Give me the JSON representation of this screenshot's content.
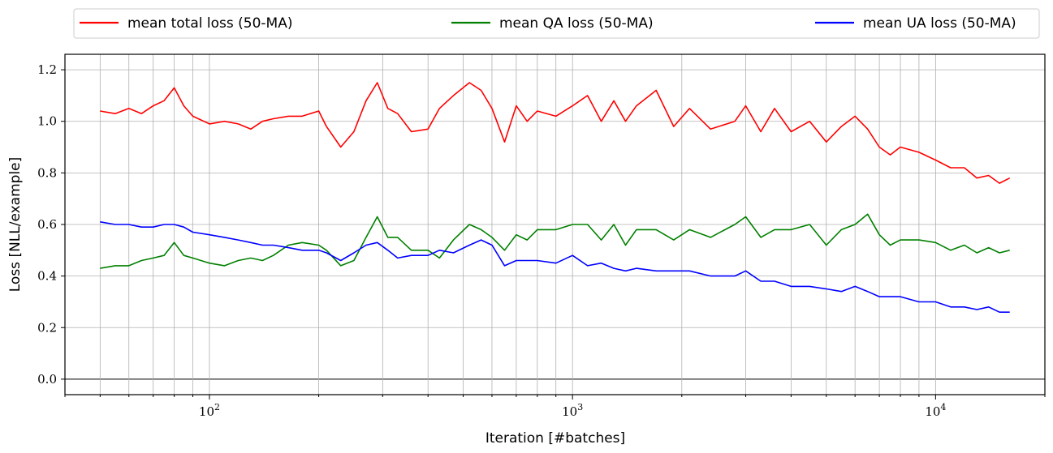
{
  "chart_data": {
    "type": "line",
    "xlabel": "Iteration [#batches]",
    "ylabel": "Loss [NLL/example]",
    "x_scale": "log",
    "xlim": [
      40,
      20000
    ],
    "ylim": [
      -0.06,
      1.26
    ],
    "grid": true,
    "legend_position": "top",
    "x_tick_labels": [
      {
        "value": 100,
        "base": "10",
        "exp": "2"
      },
      {
        "value": 1000,
        "base": "10",
        "exp": "3"
      },
      {
        "value": 10000,
        "base": "10",
        "exp": "4"
      }
    ],
    "y_ticks": [
      0.0,
      0.2,
      0.4,
      0.6,
      0.8,
      1.0,
      1.2
    ],
    "y_tick_labels": [
      "0.0",
      "0.2",
      "0.4",
      "0.6",
      "0.8",
      "1.0",
      "1.2"
    ],
    "zero_line": true,
    "series": [
      {
        "name": "mean total loss (50-MA)",
        "color": "#ff0000",
        "points": [
          [
            50,
            1.04
          ],
          [
            55,
            1.03
          ],
          [
            60,
            1.05
          ],
          [
            65,
            1.03
          ],
          [
            70,
            1.06
          ],
          [
            75,
            1.08
          ],
          [
            80,
            1.13
          ],
          [
            85,
            1.06
          ],
          [
            90,
            1.02
          ],
          [
            100,
            0.99
          ],
          [
            110,
            1.0
          ],
          [
            120,
            0.99
          ],
          [
            130,
            0.97
          ],
          [
            140,
            1.0
          ],
          [
            150,
            1.01
          ],
          [
            165,
            1.02
          ],
          [
            180,
            1.02
          ],
          [
            200,
            1.04
          ],
          [
            210,
            0.98
          ],
          [
            230,
            0.9
          ],
          [
            250,
            0.96
          ],
          [
            270,
            1.08
          ],
          [
            290,
            1.15
          ],
          [
            310,
            1.05
          ],
          [
            330,
            1.03
          ],
          [
            360,
            0.96
          ],
          [
            400,
            0.97
          ],
          [
            430,
            1.05
          ],
          [
            470,
            1.1
          ],
          [
            520,
            1.15
          ],
          [
            560,
            1.12
          ],
          [
            600,
            1.05
          ],
          [
            650,
            0.92
          ],
          [
            700,
            1.06
          ],
          [
            750,
            1.0
          ],
          [
            800,
            1.04
          ],
          [
            900,
            1.02
          ],
          [
            1000,
            1.06
          ],
          [
            1100,
            1.1
          ],
          [
            1200,
            1.0
          ],
          [
            1300,
            1.08
          ],
          [
            1400,
            1.0
          ],
          [
            1500,
            1.06
          ],
          [
            1700,
            1.12
          ],
          [
            1900,
            0.98
          ],
          [
            2100,
            1.05
          ],
          [
            2400,
            0.97
          ],
          [
            2800,
            1.0
          ],
          [
            3000,
            1.06
          ],
          [
            3300,
            0.96
          ],
          [
            3600,
            1.05
          ],
          [
            4000,
            0.96
          ],
          [
            4500,
            1.0
          ],
          [
            5000,
            0.92
          ],
          [
            5500,
            0.98
          ],
          [
            6000,
            1.02
          ],
          [
            6500,
            0.97
          ],
          [
            7000,
            0.9
          ],
          [
            7500,
            0.87
          ],
          [
            8000,
            0.9
          ],
          [
            9000,
            0.88
          ],
          [
            10000,
            0.85
          ],
          [
            11000,
            0.82
          ],
          [
            12000,
            0.82
          ],
          [
            13000,
            0.78
          ],
          [
            14000,
            0.79
          ],
          [
            15000,
            0.76
          ],
          [
            16000,
            0.78
          ]
        ]
      },
      {
        "name": "mean QA loss (50-MA)",
        "color": "#008000",
        "points": [
          [
            50,
            0.43
          ],
          [
            55,
            0.44
          ],
          [
            60,
            0.44
          ],
          [
            65,
            0.46
          ],
          [
            70,
            0.47
          ],
          [
            75,
            0.48
          ],
          [
            80,
            0.53
          ],
          [
            85,
            0.48
          ],
          [
            90,
            0.47
          ],
          [
            100,
            0.45
          ],
          [
            110,
            0.44
          ],
          [
            120,
            0.46
          ],
          [
            130,
            0.47
          ],
          [
            140,
            0.46
          ],
          [
            150,
            0.48
          ],
          [
            165,
            0.52
          ],
          [
            180,
            0.53
          ],
          [
            200,
            0.52
          ],
          [
            210,
            0.5
          ],
          [
            230,
            0.44
          ],
          [
            250,
            0.46
          ],
          [
            270,
            0.55
          ],
          [
            290,
            0.63
          ],
          [
            310,
            0.55
          ],
          [
            330,
            0.55
          ],
          [
            360,
            0.5
          ],
          [
            400,
            0.5
          ],
          [
            430,
            0.47
          ],
          [
            470,
            0.54
          ],
          [
            520,
            0.6
          ],
          [
            560,
            0.58
          ],
          [
            600,
            0.55
          ],
          [
            650,
            0.5
          ],
          [
            700,
            0.56
          ],
          [
            750,
            0.54
          ],
          [
            800,
            0.58
          ],
          [
            900,
            0.58
          ],
          [
            1000,
            0.6
          ],
          [
            1100,
            0.6
          ],
          [
            1200,
            0.54
          ],
          [
            1300,
            0.6
          ],
          [
            1400,
            0.52
          ],
          [
            1500,
            0.58
          ],
          [
            1700,
            0.58
          ],
          [
            1900,
            0.54
          ],
          [
            2100,
            0.58
          ],
          [
            2400,
            0.55
          ],
          [
            2800,
            0.6
          ],
          [
            3000,
            0.63
          ],
          [
            3300,
            0.55
          ],
          [
            3600,
            0.58
          ],
          [
            4000,
            0.58
          ],
          [
            4500,
            0.6
          ],
          [
            5000,
            0.52
          ],
          [
            5500,
            0.58
          ],
          [
            6000,
            0.6
          ],
          [
            6500,
            0.64
          ],
          [
            7000,
            0.56
          ],
          [
            7500,
            0.52
          ],
          [
            8000,
            0.54
          ],
          [
            9000,
            0.54
          ],
          [
            10000,
            0.53
          ],
          [
            11000,
            0.5
          ],
          [
            12000,
            0.52
          ],
          [
            13000,
            0.49
          ],
          [
            14000,
            0.51
          ],
          [
            15000,
            0.49
          ],
          [
            16000,
            0.5
          ]
        ]
      },
      {
        "name": "mean UA loss (50-MA)",
        "color": "#0000ff",
        "points": [
          [
            50,
            0.61
          ],
          [
            55,
            0.6
          ],
          [
            60,
            0.6
          ],
          [
            65,
            0.59
          ],
          [
            70,
            0.59
          ],
          [
            75,
            0.6
          ],
          [
            80,
            0.6
          ],
          [
            85,
            0.59
          ],
          [
            90,
            0.57
          ],
          [
            100,
            0.56
          ],
          [
            110,
            0.55
          ],
          [
            120,
            0.54
          ],
          [
            130,
            0.53
          ],
          [
            140,
            0.52
          ],
          [
            150,
            0.52
          ],
          [
            165,
            0.51
          ],
          [
            180,
            0.5
          ],
          [
            200,
            0.5
          ],
          [
            210,
            0.49
          ],
          [
            230,
            0.46
          ],
          [
            250,
            0.49
          ],
          [
            270,
            0.52
          ],
          [
            290,
            0.53
          ],
          [
            310,
            0.5
          ],
          [
            330,
            0.47
          ],
          [
            360,
            0.48
          ],
          [
            400,
            0.48
          ],
          [
            430,
            0.5
          ],
          [
            470,
            0.49
          ],
          [
            520,
            0.52
          ],
          [
            560,
            0.54
          ],
          [
            600,
            0.52
          ],
          [
            650,
            0.44
          ],
          [
            700,
            0.46
          ],
          [
            750,
            0.46
          ],
          [
            800,
            0.46
          ],
          [
            900,
            0.45
          ],
          [
            1000,
            0.48
          ],
          [
            1100,
            0.44
          ],
          [
            1200,
            0.45
          ],
          [
            1300,
            0.43
          ],
          [
            1400,
            0.42
          ],
          [
            1500,
            0.43
          ],
          [
            1700,
            0.42
          ],
          [
            1900,
            0.42
          ],
          [
            2100,
            0.42
          ],
          [
            2400,
            0.4
          ],
          [
            2800,
            0.4
          ],
          [
            3000,
            0.42
          ],
          [
            3300,
            0.38
          ],
          [
            3600,
            0.38
          ],
          [
            4000,
            0.36
          ],
          [
            4500,
            0.36
          ],
          [
            5000,
            0.35
          ],
          [
            5500,
            0.34
          ],
          [
            6000,
            0.36
          ],
          [
            6500,
            0.34
          ],
          [
            7000,
            0.32
          ],
          [
            7500,
            0.32
          ],
          [
            8000,
            0.32
          ],
          [
            9000,
            0.3
          ],
          [
            10000,
            0.3
          ],
          [
            11000,
            0.28
          ],
          [
            12000,
            0.28
          ],
          [
            13000,
            0.27
          ],
          [
            14000,
            0.28
          ],
          [
            15000,
            0.26
          ],
          [
            16000,
            0.26
          ]
        ]
      }
    ]
  }
}
